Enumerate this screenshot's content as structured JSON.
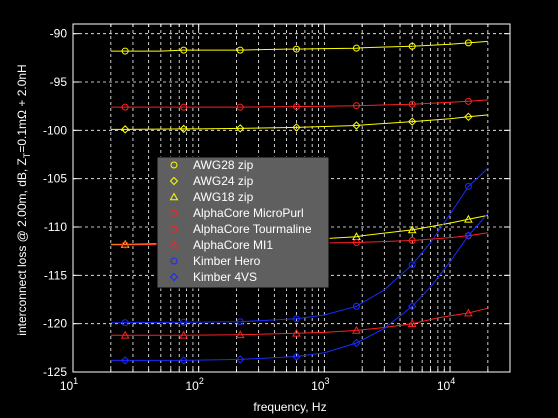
{
  "chart_data": {
    "type": "line",
    "xscale": "log",
    "xlim": [
      10,
      30000
    ],
    "ylim": [
      -125,
      -89
    ],
    "grid": true,
    "legend_position": "center-left",
    "xlabel": "frequency, Hz",
    "ylabel_parts": {
      "prefix": "interconnect loss @ 2.00m, dB, Z",
      "sub": "T",
      "suffix": "=0.1mΩ + 2.0nH"
    },
    "x_ticks": [
      {
        "value": 10,
        "base": "10",
        "exp": "1"
      },
      {
        "value": 100,
        "base": "10",
        "exp": "2"
      },
      {
        "value": 1000,
        "base": "10",
        "exp": "3"
      },
      {
        "value": 10000,
        "base": "10",
        "exp": "4"
      }
    ],
    "y_ticks": [
      -90,
      -95,
      -100,
      -105,
      -110,
      -115,
      -120,
      -125
    ],
    "series": [
      {
        "name": "AWG28 zip",
        "color": "#ffff00",
        "marker": "circle",
        "x": [
          20,
          26,
          50,
          76,
          100,
          214,
          500,
          600,
          1000,
          1800,
          2000,
          5000,
          10000,
          14000,
          20000
        ],
        "y": [
          -91.8,
          -91.8,
          -91.8,
          -91.7,
          -91.7,
          -91.7,
          -91.6,
          -91.6,
          -91.55,
          -91.5,
          -91.45,
          -91.3,
          -91.1,
          -90.95,
          -90.8
        ]
      },
      {
        "name": "AWG24 zip",
        "color": "#ffff00",
        "marker": "diamond",
        "x": [
          20,
          26,
          76,
          100,
          214,
          600,
          1000,
          1800,
          2000,
          5000,
          10000,
          14000,
          20000
        ],
        "y": [
          -99.9,
          -99.9,
          -99.85,
          -99.85,
          -99.8,
          -99.7,
          -99.6,
          -99.5,
          -99.45,
          -99.1,
          -98.8,
          -98.6,
          -98.4
        ]
      },
      {
        "name": "AWG18 zip",
        "color": "#ffff00",
        "marker": "triangle",
        "x": [
          20,
          26,
          76,
          214,
          600,
          1000,
          1800,
          2000,
          5000,
          10000,
          14000,
          20000
        ],
        "y": [
          -111.8,
          -111.8,
          -111.7,
          -111.6,
          -111.4,
          -111.2,
          -111.0,
          -110.9,
          -110.3,
          -109.6,
          -109.2,
          -108.8
        ]
      },
      {
        "name": "AlphaCore MicroPurl",
        "color": "#ff2020",
        "marker": "circle",
        "x": [
          20,
          26,
          76,
          214,
          600,
          1800,
          5000,
          10000,
          14000,
          20000
        ],
        "y": [
          -97.6,
          -97.6,
          -97.6,
          -97.6,
          -97.55,
          -97.45,
          -97.3,
          -97.1,
          -97.0,
          -96.85
        ]
      },
      {
        "name": "AlphaCore Tourmaline",
        "color": "#ff2020",
        "marker": "circle",
        "x": [
          20,
          26,
          76,
          214,
          600,
          1800,
          5000,
          10000,
          14000,
          20000
        ],
        "y": [
          -111.85,
          -111.85,
          -111.8,
          -111.75,
          -111.7,
          -111.6,
          -111.4,
          -111.1,
          -110.9,
          -110.6
        ]
      },
      {
        "name": "AlphaCore MI1",
        "color": "#ff2020",
        "marker": "triangle",
        "x": [
          20,
          26,
          76,
          214,
          600,
          1000,
          1800,
          3000,
          5000,
          8000,
          10000,
          14000,
          20000
        ],
        "y": [
          -121.2,
          -121.2,
          -121.2,
          -121.15,
          -121.0,
          -120.9,
          -120.7,
          -120.4,
          -120.0,
          -119.4,
          -119.2,
          -118.9,
          -118.4
        ]
      },
      {
        "name": "Kimber Hero",
        "color": "#1a2cff",
        "marker": "circle",
        "x": [
          20,
          26,
          76,
          214,
          600,
          1000,
          1800,
          3000,
          5000,
          7000,
          10000,
          14000,
          17000,
          20000
        ],
        "y": [
          -119.9,
          -119.9,
          -119.85,
          -119.8,
          -119.5,
          -119.1,
          -118.2,
          -116.5,
          -113.9,
          -111.6,
          -108.7,
          -105.8,
          -104.8,
          -103.9
        ]
      },
      {
        "name": "Kimber 4VS",
        "color": "#1a2cff",
        "marker": "diamond",
        "x": [
          20,
          26,
          76,
          214,
          600,
          1000,
          1800,
          3000,
          5000,
          7000,
          10000,
          14000,
          20000
        ],
        "y": [
          -123.8,
          -123.8,
          -123.8,
          -123.7,
          -123.4,
          -123.0,
          -122.0,
          -120.5,
          -118.2,
          -116.2,
          -113.6,
          -110.9,
          -108.6
        ]
      }
    ]
  }
}
